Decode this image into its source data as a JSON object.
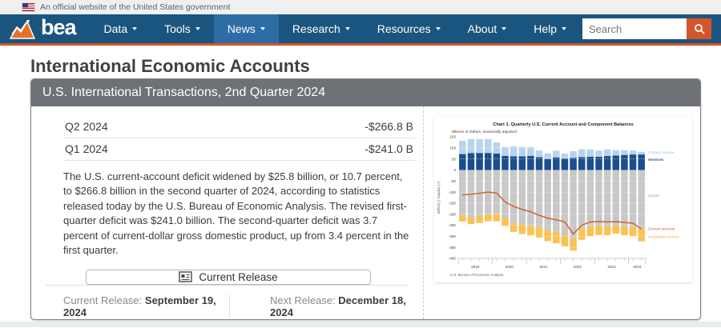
{
  "banner": {
    "text": "An official website of the United States government"
  },
  "nav": {
    "logo_text": "bea",
    "items": [
      {
        "label": "Data"
      },
      {
        "label": "Tools"
      },
      {
        "label": "News",
        "active": true
      },
      {
        "label": "Research"
      },
      {
        "label": "Resources"
      },
      {
        "label": "About"
      },
      {
        "label": "Help"
      }
    ],
    "search_placeholder": "Search"
  },
  "page_title": "International Economic Accounts",
  "panel": {
    "header": "U.S. International Transactions, 2nd Quarter 2024",
    "rows": [
      {
        "label": "Q2 2024",
        "value": "-$266.8 B"
      },
      {
        "label": "Q1 2024",
        "value": "-$241.0 B"
      }
    ],
    "summary": "The U.S. current-account deficit widened by $25.8 billion, or 10.7 percent, to $266.8 billion in the second quarter of 2024, according to statistics released today by the U.S. Bureau of Economic Analysis. The revised first-quarter deficit was $241.0 billion. The second-quarter deficit was 3.7 percent of current-dollar gross domestic product, up from 3.4 percent in the first quarter.",
    "button_label": "Current Release",
    "current_release_label": "Current Release:",
    "current_release_date": "September 19, 2024",
    "next_release_label": "Next Release:",
    "next_release_date": "December 18, 2024"
  },
  "icons": {
    "flag": "us-flag-icon",
    "logo": "bea-chart-logo",
    "caret": "chevron-down-icon",
    "search": "magnifier-icon",
    "button": "newspaper-icon"
  },
  "colors": {
    "nav_bg": "#1a557f",
    "nav_active": "#2d6da5",
    "accent_orange": "#d75427",
    "panel_header": "#6e7277"
  },
  "chart_data": {
    "type": "bar",
    "subtype": "stacked-bar-with-line",
    "title": "Chart 1. Quarterly U.S. Current Account and Component Balances",
    "subtitle": "Billions of dollars, seasonally adjusted",
    "source": "U.S. Bureau of Economic Analysis",
    "y_axis_label": "Deficit (-) Surplus (+)",
    "ylim": [
      -400,
      150
    ],
    "ytick_step": 50,
    "legend_position": "right",
    "grid": false,
    "categories": [
      "2019Q1",
      "2019Q2",
      "2019Q3",
      "2019Q4",
      "2020Q1",
      "2020Q2",
      "2020Q3",
      "2020Q4",
      "2021Q1",
      "2021Q2",
      "2021Q3",
      "2021Q4",
      "2022Q1",
      "2022Q2",
      "2022Q3",
      "2022Q4",
      "2023Q1",
      "2023Q2",
      "2023Q3",
      "2023Q4",
      "2024Q1",
      "2024Q2"
    ],
    "series": [
      {
        "name": "Primary income",
        "kind": "bar-positive-top",
        "color": "#b8d3ec",
        "label_color": "#9dc3e6",
        "label_at": 80,
        "values": [
          60,
          64,
          62,
          63,
          50,
          40,
          45,
          42,
          40,
          30,
          25,
          30,
          22,
          30,
          36,
          33,
          28,
          30,
          25,
          22,
          18,
          12
        ]
      },
      {
        "name": "Services",
        "kind": "bar-positive-base",
        "color": "#1a4e8f",
        "label_color": "#1a4e8f",
        "label_at": 48,
        "values": [
          72,
          76,
          77,
          77,
          74,
          64,
          62,
          62,
          64,
          58,
          50,
          57,
          52,
          55,
          58,
          60,
          60,
          63,
          65,
          68,
          70,
          70
        ]
      },
      {
        "name": "Goods",
        "kind": "bar-negative-base",
        "color": "#c8c8c8",
        "label_color": "#a0a0a0",
        "label_at": -115,
        "values": [
          -205,
          -215,
          -210,
          -200,
          -198,
          -218,
          -240,
          -248,
          -252,
          -260,
          -272,
          -280,
          -295,
          -310,
          -268,
          -255,
          -252,
          -255,
          -250,
          -255,
          -258,
          -265
        ]
      },
      {
        "name": "Secondary income",
        "kind": "bar-negative-bottom",
        "color": "#fbc252",
        "label_color": "#f0a93a",
        "label_at": -302,
        "values": [
          -28,
          -30,
          -30,
          -32,
          -34,
          -36,
          -40,
          -42,
          -44,
          -46,
          -50,
          -52,
          -50,
          -55,
          -48,
          -45,
          -42,
          -40,
          -38,
          -40,
          -42,
          -58
        ]
      },
      {
        "name": "Current account",
        "kind": "line",
        "color": "#c95f2b",
        "label_color": "#c05a28",
        "label_at": -266,
        "values": [
          -113,
          -110,
          -105,
          -100,
          -104,
          -145,
          -165,
          -178,
          -189,
          -205,
          -218,
          -225,
          -235,
          -290,
          -250,
          -235,
          -233,
          -235,
          -234,
          -237,
          -241,
          -266.8
        ]
      }
    ]
  }
}
